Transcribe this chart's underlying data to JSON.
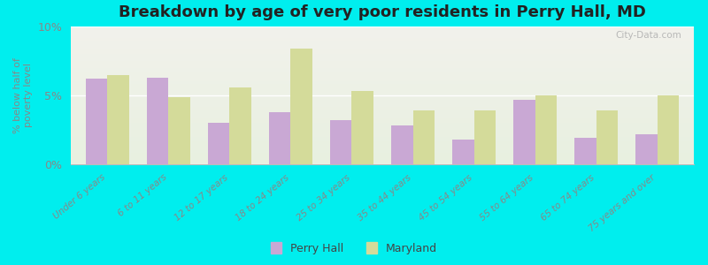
{
  "title": "Breakdown by age of very poor residents in Perry Hall, MD",
  "ylabel": "% below half of\npoverty level",
  "categories": [
    "Under 6 years",
    "6 to 11 years",
    "12 to 17 years",
    "18 to 24 years",
    "25 to 34 years",
    "35 to 44 years",
    "45 to 54 years",
    "55 to 64 years",
    "65 to 74 years",
    "75 years and over"
  ],
  "perry_hall": [
    6.2,
    6.3,
    3.0,
    3.8,
    3.2,
    2.8,
    1.8,
    4.7,
    1.9,
    2.2
  ],
  "maryland": [
    6.5,
    4.9,
    5.6,
    8.4,
    5.3,
    3.9,
    3.9,
    5.0,
    3.9,
    5.0
  ],
  "perry_hall_color": "#c9a8d4",
  "maryland_color": "#d4db9a",
  "background_outer": "#00eeee",
  "background_plot_top": "#f2f2ec",
  "background_plot_bottom": "#e8f0e0",
  "ylim": [
    0,
    10
  ],
  "yticks": [
    0,
    5,
    10
  ],
  "ytick_labels": [
    "0%",
    "5%",
    "10%"
  ],
  "title_fontsize": 13,
  "watermark": "City-Data.com",
  "bar_width": 0.35
}
